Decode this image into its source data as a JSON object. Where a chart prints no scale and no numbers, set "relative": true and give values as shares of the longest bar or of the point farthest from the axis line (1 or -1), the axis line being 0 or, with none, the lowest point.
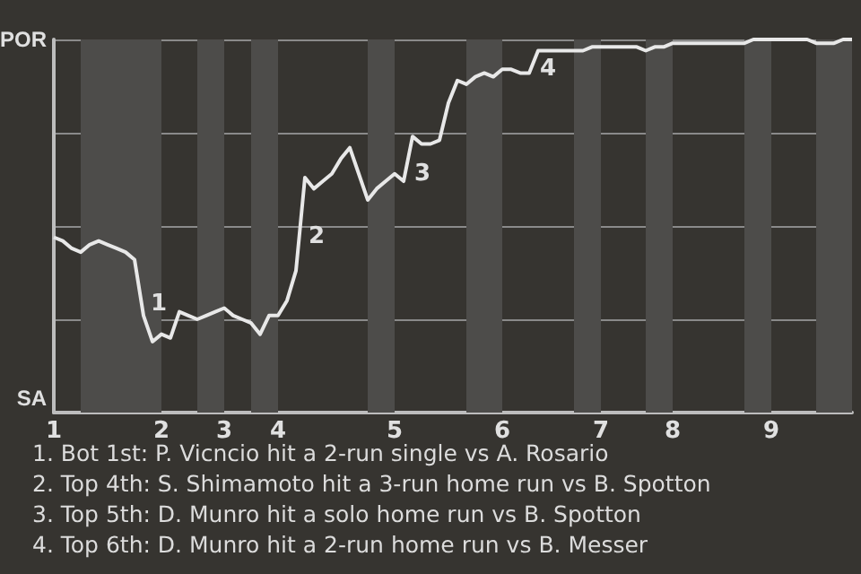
{
  "chart_data": {
    "type": "line",
    "relative": true,
    "categories": [
      "1",
      null,
      null,
      null,
      null,
      null,
      null,
      null,
      null,
      null,
      null,
      null,
      "2",
      null,
      null,
      null,
      null,
      null,
      null,
      "3",
      null,
      null,
      null,
      null,
      null,
      "4",
      null,
      null,
      null,
      null,
      null,
      null,
      null,
      null,
      null,
      null,
      null,
      null,
      "5",
      null,
      null,
      null,
      null,
      null,
      null,
      null,
      null,
      null,
      null,
      null,
      "6",
      null,
      null,
      null,
      null,
      null,
      null,
      null,
      null,
      null,
      null,
      "7",
      null,
      null,
      null,
      null,
      null,
      null,
      null,
      "8",
      null,
      null,
      null,
      null,
      null,
      null,
      null,
      null,
      null,
      null,
      "9",
      null,
      null,
      null,
      null,
      null,
      null,
      null,
      null,
      null
    ],
    "series": [
      {
        "color": "#e8e8e8",
        "values": [
          0.47,
          0.46,
          0.44,
          0.43,
          0.45,
          0.46,
          0.45,
          0.44,
          0.43,
          0.41,
          0.26,
          0.19,
          0.21,
          0.2,
          0.27,
          0.26,
          0.25,
          0.26,
          0.27,
          0.28,
          0.26,
          0.25,
          0.24,
          0.21,
          0.26,
          0.26,
          0.3,
          0.38,
          0.63,
          0.6,
          0.62,
          0.64,
          0.68,
          0.71,
          0.64,
          0.57,
          0.6,
          0.62,
          0.64,
          0.62,
          0.74,
          0.72,
          0.72,
          0.73,
          0.83,
          0.89,
          0.88,
          0.9,
          0.91,
          0.9,
          0.92,
          0.92,
          0.91,
          0.91,
          0.97,
          0.97,
          0.97,
          0.97,
          0.97,
          0.97,
          0.98,
          0.98,
          0.98,
          0.98,
          0.98,
          0.98,
          0.97,
          0.98,
          0.98,
          0.99,
          0.99,
          0.99,
          0.99,
          0.99,
          0.99,
          0.99,
          0.99,
          0.99,
          1,
          1,
          1,
          1,
          1,
          1,
          1,
          0.99,
          0.99,
          0.99,
          1,
          1
        ]
      }
    ],
    "grid": "y",
    "marker": "none",
    "line_style": "solid",
    "annotations": [
      "POR",
      "SA",
      "1",
      "2",
      "3",
      "4",
      "1. Bot 1st: P. Vicncio hit a 2-run single vs A. Rosario",
      "2. Top 4th: S. Shimamoto hit a 3-run home run vs B. Spotton",
      "3. Top 5th: D. Munro hit a solo home run vs B. Spotton",
      "4. Top 6th: D. Munro hit a 2-run home run vs B. Messer"
    ]
  }
}
